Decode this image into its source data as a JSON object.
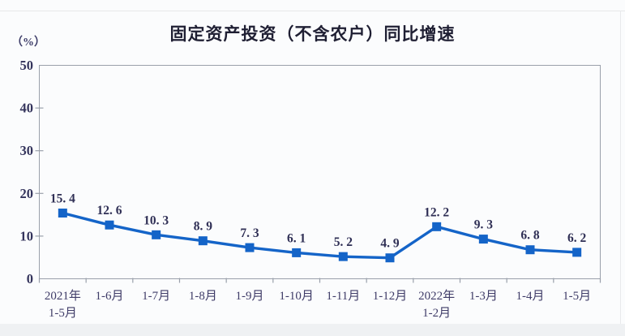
{
  "page": {
    "card_background": "#fbfcfd",
    "bottom_strip_color": "#eff1f3"
  },
  "chart_data": {
    "type": "line",
    "title": "固定资产投资（不含农户）同比增速",
    "unit_label": "（%）",
    "categories": [
      "2021年\n1-5月",
      "1-6月",
      "1-7月",
      "1-8月",
      "1-9月",
      "1-10月",
      "1-11月",
      "1-12月",
      "2022年\n1-2月",
      "1-3月",
      "1-4月",
      "1-5月"
    ],
    "values": [
      15.4,
      12.6,
      10.3,
      8.9,
      7.3,
      6.1,
      5.2,
      4.9,
      12.2,
      9.3,
      6.8,
      6.2
    ],
    "point_labels": [
      "15. 4",
      "12. 6",
      "10. 3",
      "8. 9",
      "7. 3",
      "6. 1",
      "5. 2",
      "4. 9",
      "12. 2",
      "9. 3",
      "6. 8",
      "6. 2"
    ],
    "ylim": [
      0,
      50
    ],
    "yticks": [
      0,
      10,
      20,
      30,
      40,
      50
    ],
    "grid": false,
    "legend": "none",
    "marker": "square",
    "line_color": "#1464c8",
    "axis_color": "#9aa0ab",
    "tick_label_color": "#34345c",
    "data_label_color": "#2f2f55",
    "x_label_color": "#3f3c68",
    "title_color": "#1f1f33"
  }
}
